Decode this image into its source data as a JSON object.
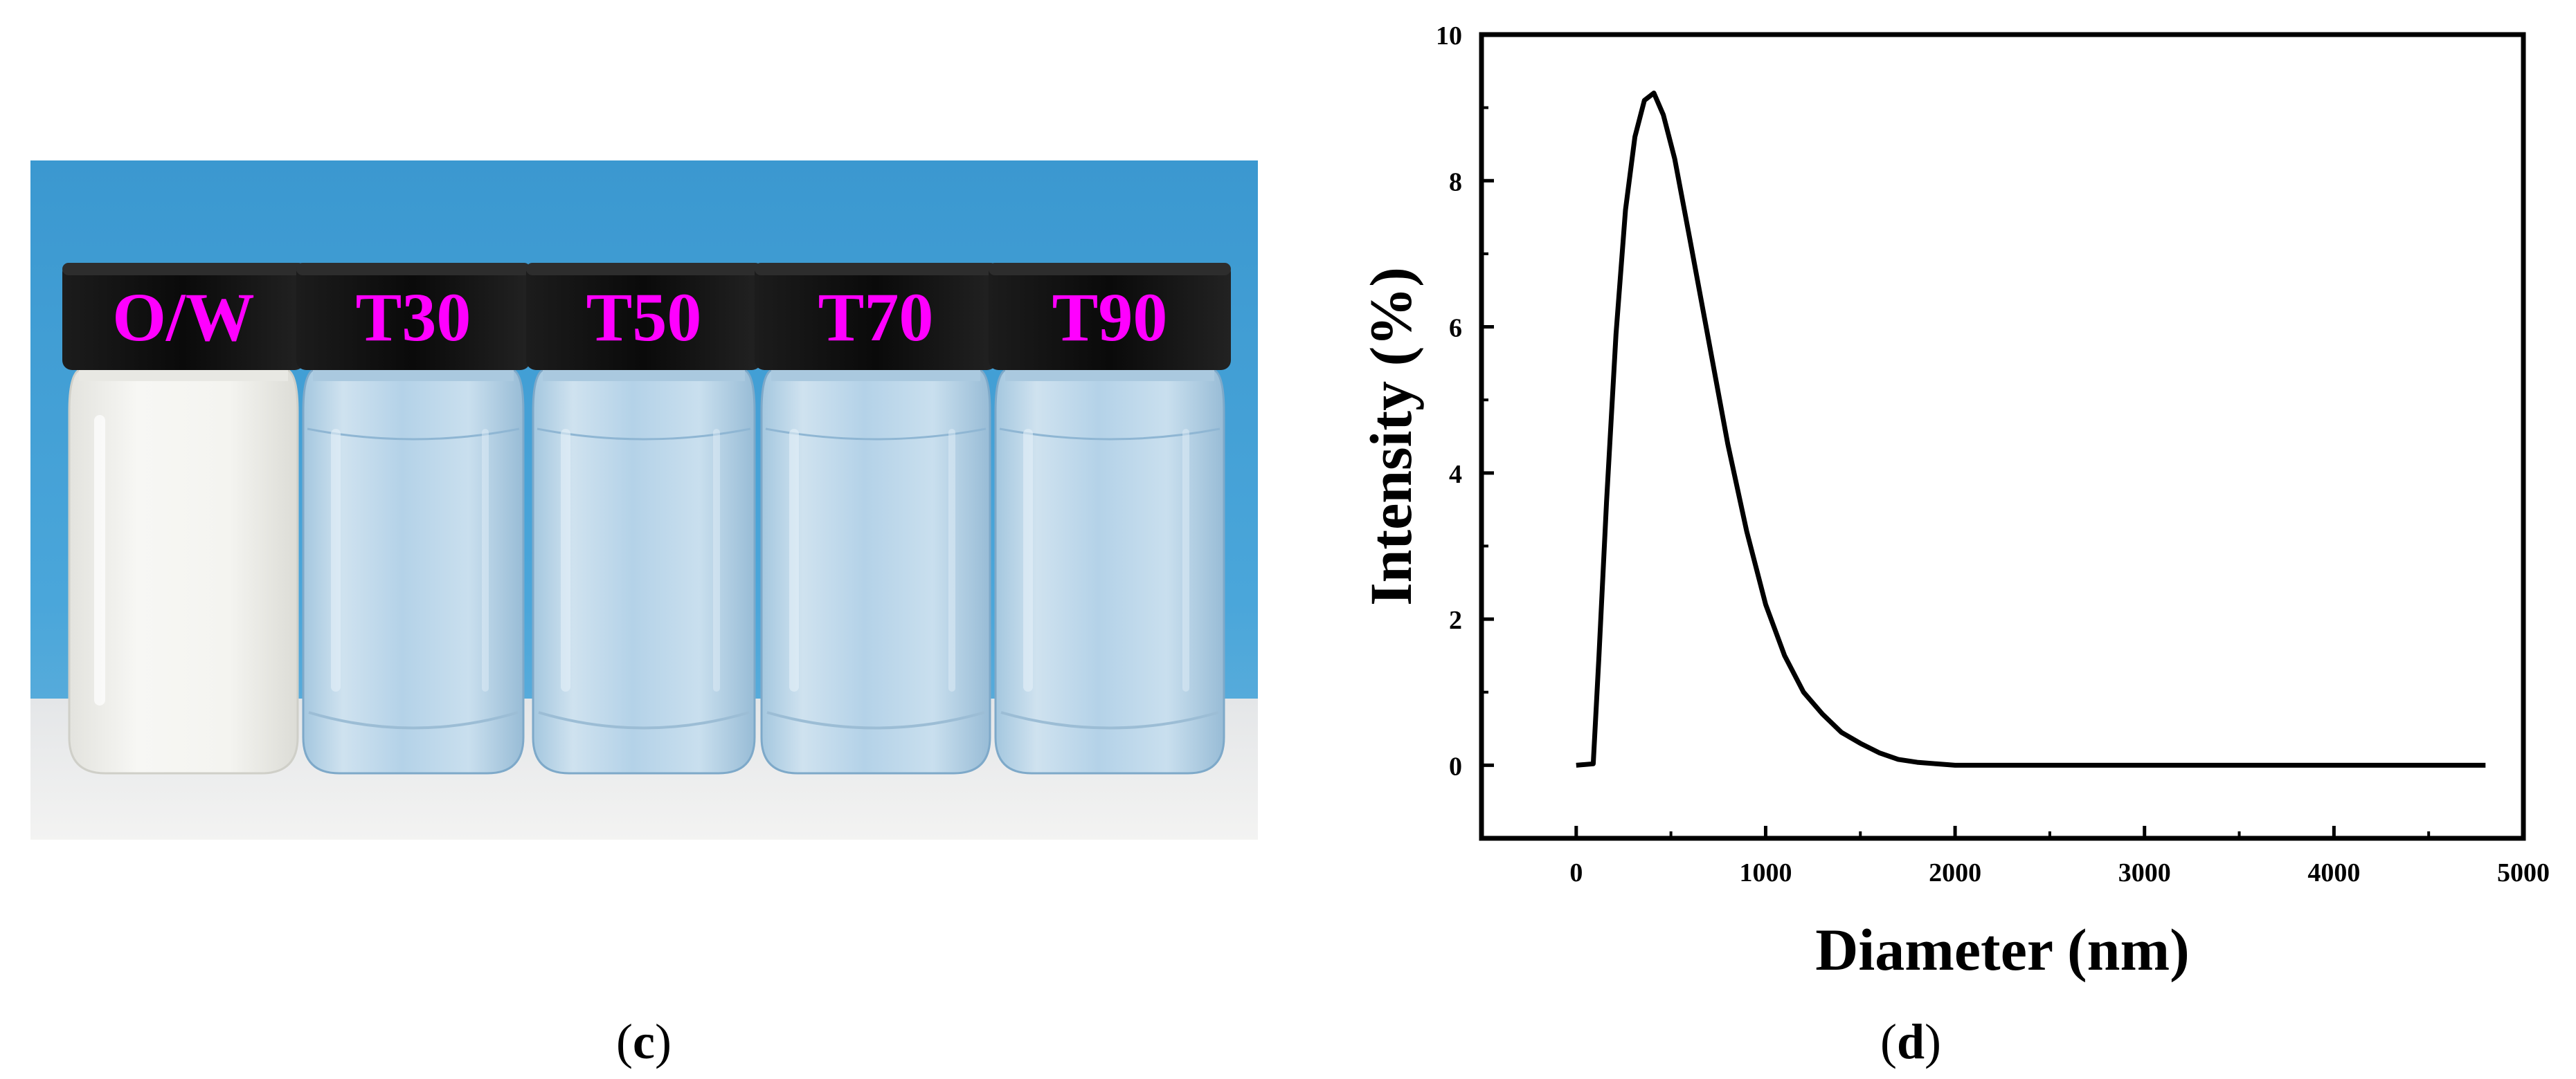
{
  "panels": {
    "photo": {
      "label_prefix": "(",
      "label_letter": "c",
      "label_suffix": ")",
      "vials": [
        {
          "label": "O/W",
          "contents": "milky"
        },
        {
          "label": "T30",
          "contents": "clear"
        },
        {
          "label": "T50",
          "contents": "clear"
        },
        {
          "label": "T70",
          "contents": "clear"
        },
        {
          "label": "T90",
          "contents": "clear"
        }
      ],
      "colors": {
        "background": "#3f9fd6",
        "label_text": "#ff00ff",
        "cap": "#111111",
        "milky_liquid": "#f2f1ee"
      }
    },
    "chart": {
      "label_prefix": "(",
      "label_letter": "d",
      "label_suffix": ")"
    }
  },
  "chart_data": {
    "type": "line",
    "xlabel": "Diameter (nm)",
    "ylabel": "Intensity (%)",
    "xlim": [
      -500,
      5000
    ],
    "ylim": [
      -1,
      10
    ],
    "xticks": [
      0,
      1000,
      2000,
      3000,
      4000,
      5000
    ],
    "yticks": [
      0,
      2,
      4,
      6,
      8,
      10
    ],
    "grid": false,
    "legend": "none",
    "line_color": "#000000",
    "series": [
      {
        "x": [
          0,
          90,
          120,
          160,
          210,
          260,
          310,
          360,
          410,
          460,
          520,
          600,
          700,
          800,
          900,
          1000,
          1100,
          1200,
          1300,
          1400,
          1500,
          1600,
          1700,
          1800,
          1900,
          2000,
          2500,
          3000,
          3500,
          4000,
          4500,
          4800
        ],
        "y": [
          0,
          0.02,
          1.5,
          3.6,
          5.9,
          7.6,
          8.6,
          9.1,
          9.2,
          8.9,
          8.3,
          7.2,
          5.8,
          4.4,
          3.2,
          2.2,
          1.5,
          1.0,
          0.7,
          0.45,
          0.3,
          0.17,
          0.08,
          0.04,
          0.02,
          0,
          0,
          0,
          0,
          0,
          0,
          0
        ]
      }
    ]
  }
}
